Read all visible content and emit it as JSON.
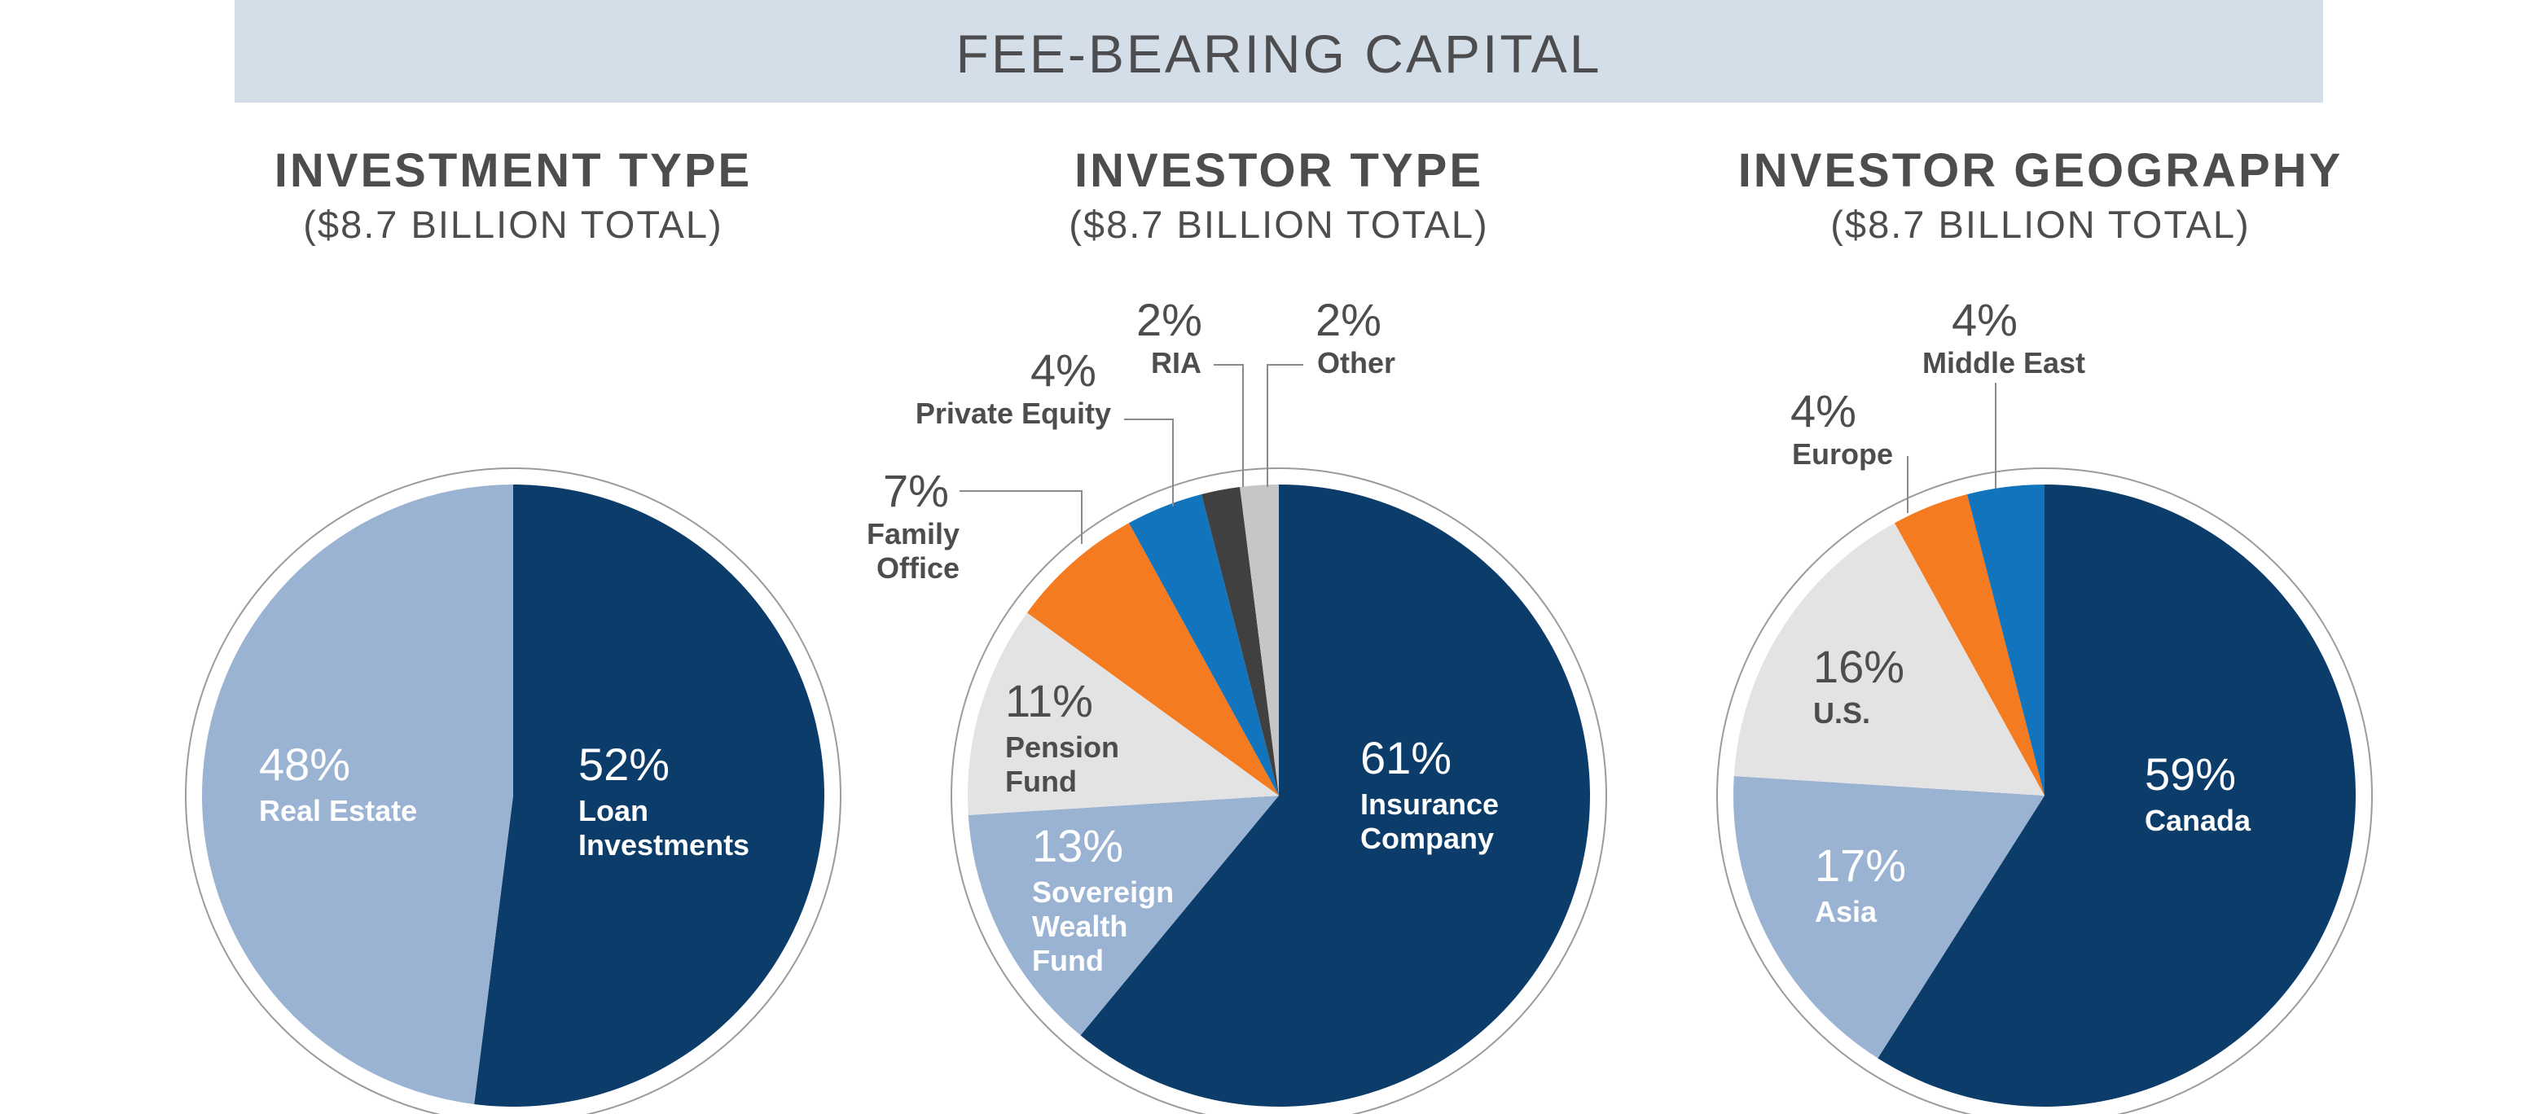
{
  "banner": {
    "title": "FEE-BEARING CAPITAL"
  },
  "chart_data": [
    {
      "type": "pie",
      "title": "INVESTMENT TYPE",
      "subtitle": "($8.7 BILLION TOTAL)",
      "slices": [
        {
          "label": "Loan Investments",
          "value": 52,
          "pct_label": "52%",
          "color": "#0c3c69"
        },
        {
          "label": "Real Estate",
          "value": 48,
          "pct_label": "48%",
          "color": "#9bb3d3"
        }
      ]
    },
    {
      "type": "pie",
      "title": "INVESTOR TYPE",
      "subtitle": "($8.7 BILLION TOTAL)",
      "slices": [
        {
          "label": "Insurance Company",
          "value": 61,
          "pct_label": "61%",
          "color": "#0c3c69"
        },
        {
          "label": "Sovereign Wealth Fund",
          "value": 13,
          "pct_label": "13%",
          "color": "#9bb3d3"
        },
        {
          "label": "Pension Fund",
          "value": 11,
          "pct_label": "11%",
          "color": "#e3e3e4"
        },
        {
          "label": "Family Office",
          "value": 7,
          "pct_label": "7%",
          "color": "#f47b20"
        },
        {
          "label": "Private Equity",
          "value": 4,
          "pct_label": "4%",
          "color": "#1274bc"
        },
        {
          "label": "RIA",
          "value": 2,
          "pct_label": "2%",
          "color": "#404041"
        },
        {
          "label": "Other",
          "value": 2,
          "pct_label": "2%",
          "color": "#c6c6c7"
        }
      ]
    },
    {
      "type": "pie",
      "title": "INVESTOR GEOGRAPHY",
      "subtitle": "($8.7 BILLION TOTAL)",
      "slices": [
        {
          "label": "Canada",
          "value": 59,
          "pct_label": "59%",
          "color": "#0c3c69"
        },
        {
          "label": "Asia",
          "value": 17,
          "pct_label": "17%",
          "color": "#9bb3d3"
        },
        {
          "label": "U.S.",
          "value": 16,
          "pct_label": "16%",
          "color": "#e3e3e4"
        },
        {
          "label": "Europe",
          "value": 4,
          "pct_label": "4%",
          "color": "#f47b20"
        },
        {
          "label": "Middle East",
          "value": 4,
          "pct_label": "4%",
          "color": "#1274bc"
        }
      ]
    }
  ]
}
